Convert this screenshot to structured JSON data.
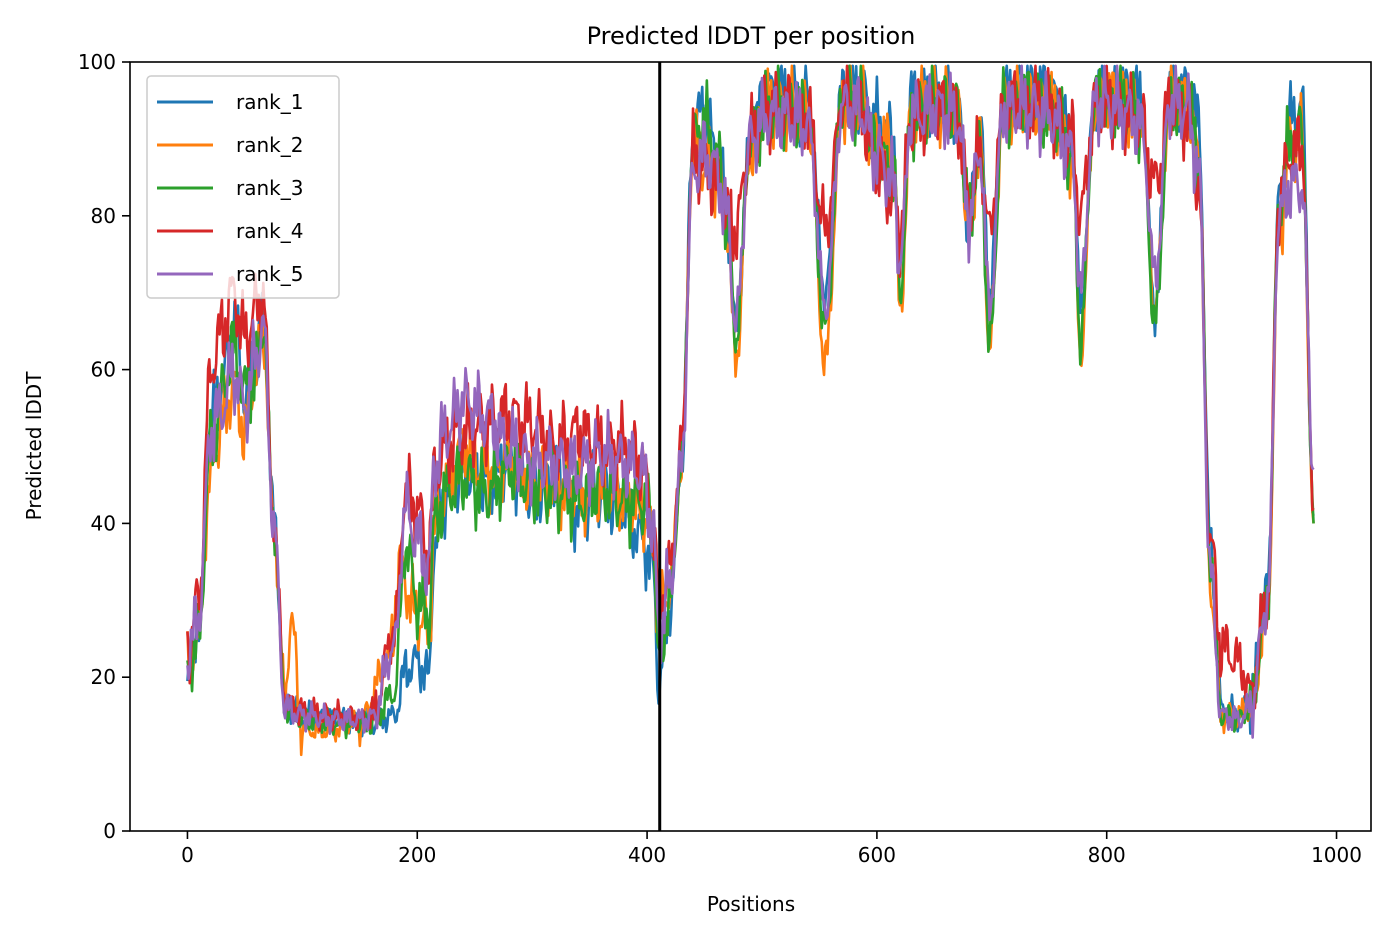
{
  "chart_data": {
    "type": "line",
    "title": "Predicted lDDT per position",
    "xlabel": "Positions",
    "ylabel": "Predicted lDDT",
    "xlim": [
      -50,
      1030
    ],
    "ylim": [
      0,
      100
    ],
    "xticks": [
      0,
      200,
      400,
      600,
      800,
      1000
    ],
    "yticks": [
      0,
      20,
      40,
      60,
      80,
      100
    ],
    "grid": false,
    "legend_position": "top-left",
    "vertical_line": {
      "x": 411,
      "color": "#000000"
    },
    "series": [
      {
        "name": "rank_1",
        "color": "#1f77b4",
        "x": [
          0,
          10,
          20,
          30,
          40,
          50,
          60,
          66,
          75,
          85,
          100,
          130,
          160,
          180,
          190,
          200,
          210,
          215,
          225,
          240,
          260,
          280,
          300,
          320,
          340,
          360,
          380,
          395,
          405,
          410,
          420,
          430,
          440,
          450,
          460,
          470,
          477,
          490,
          505,
          520,
          540,
          555,
          570,
          585,
          600,
          615,
          620,
          630,
          650,
          670,
          680,
          690,
          698,
          710,
          730,
          750,
          770,
          777,
          790,
          810,
          830,
          842,
          855,
          870,
          880,
          890,
          900,
          915,
          925,
          940,
          950,
          960,
          970,
          980
        ],
        "y": [
          19.5,
          27,
          53,
          58,
          66,
          57,
          62,
          68,
          41,
          17,
          15,
          14.5,
          14,
          15,
          21,
          22,
          20,
          37,
          44,
          47,
          45,
          48,
          44,
          46,
          42,
          44,
          42,
          38,
          35,
          19,
          29,
          48,
          91,
          94,
          88,
          80,
          65,
          90,
          96,
          96,
          95,
          70,
          96,
          96,
          92,
          90,
          72,
          95,
          96,
          95,
          78,
          92,
          70,
          96,
          97,
          96,
          90,
          68,
          96,
          96,
          95,
          68,
          97,
          96,
          92,
          38,
          16,
          15,
          17,
          31,
          82,
          92,
          95,
          41
        ]
      },
      {
        "name": "rank_2",
        "color": "#ff7f0e",
        "x": [
          0,
          10,
          20,
          30,
          40,
          50,
          60,
          66,
          75,
          85,
          90,
          100,
          120,
          150,
          175,
          185,
          200,
          210,
          215,
          225,
          240,
          260,
          280,
          300,
          320,
          340,
          360,
          380,
          395,
          405,
          410,
          420,
          430,
          440,
          450,
          460,
          470,
          477,
          490,
          505,
          520,
          540,
          555,
          570,
          585,
          600,
          615,
          620,
          630,
          650,
          670,
          680,
          690,
          698,
          710,
          730,
          750,
          770,
          777,
          790,
          810,
          830,
          842,
          855,
          870,
          880,
          890,
          900,
          915,
          925,
          940,
          950,
          960,
          970,
          980
        ],
        "y": [
          22,
          26,
          46,
          53,
          58,
          52,
          60,
          64,
          40,
          17,
          28,
          13,
          13,
          14,
          22,
          34,
          28,
          26,
          40,
          45,
          50,
          47,
          48,
          46,
          45,
          44,
          44,
          44,
          42,
          38,
          28,
          32,
          48,
          89,
          87,
          86,
          78,
          61,
          89,
          94,
          94,
          93,
          61,
          95,
          95,
          90,
          88,
          67,
          94,
          95,
          94,
          78,
          90,
          63,
          94,
          95,
          94,
          88,
          62,
          95,
          95,
          93,
          68,
          95,
          94,
          88,
          32,
          15,
          15,
          16,
          29,
          78,
          90,
          90,
          40
        ]
      },
      {
        "name": "rank_3",
        "color": "#2ca02c",
        "x": [
          0,
          10,
          20,
          30,
          40,
          50,
          60,
          66,
          75,
          85,
          100,
          130,
          160,
          180,
          190,
          200,
          210,
          215,
          225,
          240,
          260,
          280,
          300,
          320,
          340,
          360,
          380,
          395,
          405,
          410,
          420,
          430,
          440,
          450,
          460,
          470,
          477,
          490,
          505,
          520,
          540,
          555,
          570,
          585,
          600,
          615,
          620,
          630,
          650,
          670,
          680,
          690,
          698,
          710,
          730,
          750,
          770,
          777,
          790,
          810,
          830,
          842,
          855,
          870,
          880,
          890,
          900,
          915,
          925,
          940,
          950,
          960,
          970,
          980
        ],
        "y": [
          21,
          25,
          50,
          57,
          63,
          57,
          60,
          66,
          40,
          16,
          14.5,
          14,
          14,
          18,
          37,
          30,
          28,
          40,
          44,
          46,
          44,
          47,
          45,
          44,
          43,
          45,
          43,
          43,
          40,
          22,
          30,
          48,
          90,
          92,
          88,
          80,
          64,
          90,
          94,
          94,
          93,
          65,
          96,
          95,
          88,
          86,
          70,
          93,
          95,
          94,
          80,
          89,
          63,
          94,
          95,
          94,
          88,
          64,
          95,
          95,
          93,
          66,
          95,
          94,
          88,
          36,
          15,
          14.5,
          16,
          30,
          82,
          90,
          91,
          40
        ]
      },
      {
        "name": "rank_4",
        "color": "#d62728",
        "x": [
          0,
          10,
          20,
          30,
          40,
          50,
          60,
          66,
          75,
          85,
          100,
          130,
          160,
          180,
          190,
          200,
          210,
          215,
          225,
          240,
          260,
          280,
          300,
          320,
          340,
          360,
          380,
          395,
          405,
          410,
          420,
          430,
          440,
          450,
          460,
          470,
          477,
          490,
          505,
          520,
          540,
          555,
          570,
          585,
          600,
          615,
          620,
          630,
          650,
          670,
          680,
          690,
          698,
          710,
          730,
          750,
          770,
          777,
          790,
          810,
          830,
          842,
          855,
          870,
          880,
          890,
          900,
          915,
          925,
          940,
          950,
          960,
          970,
          980
        ],
        "y": [
          24,
          30,
          60,
          65,
          70,
          64,
          68,
          70,
          40,
          17,
          15.5,
          15,
          14.5,
          26,
          44,
          42,
          36,
          46,
          50,
          52,
          53,
          54,
          53,
          50,
          52,
          50,
          50,
          48,
          40,
          30,
          34,
          50,
          88,
          86,
          84,
          80,
          78,
          90,
          94,
          94,
          93,
          78,
          95,
          94,
          86,
          82,
          78,
          92,
          94,
          93,
          82,
          88,
          78,
          94,
          95,
          94,
          90,
          80,
          94,
          94,
          92,
          84,
          94,
          93,
          84,
          38,
          24,
          22,
          18,
          30,
          82,
          88,
          89,
          42
        ]
      },
      {
        "name": "rank_5",
        "color": "#9467bd",
        "x": [
          0,
          10,
          20,
          30,
          40,
          50,
          60,
          66,
          75,
          85,
          100,
          130,
          160,
          180,
          190,
          200,
          210,
          215,
          225,
          240,
          260,
          280,
          300,
          320,
          340,
          360,
          380,
          395,
          405,
          410,
          420,
          430,
          440,
          450,
          460,
          470,
          477,
          490,
          505,
          520,
          540,
          555,
          570,
          585,
          600,
          615,
          620,
          630,
          650,
          670,
          680,
          690,
          698,
          710,
          730,
          750,
          770,
          777,
          790,
          810,
          830,
          842,
          855,
          870,
          880,
          890,
          900,
          915,
          925,
          940,
          950,
          960,
          970,
          980
        ],
        "y": [
          23,
          28,
          52,
          55,
          60,
          55,
          62,
          66,
          40,
          16,
          15,
          14.5,
          14.5,
          24,
          42,
          38,
          34,
          48,
          52,
          56,
          54,
          50,
          48,
          48,
          47,
          49,
          48,
          47,
          40,
          26,
          32,
          48,
          86,
          88,
          86,
          80,
          66,
          90,
          93,
          93,
          92,
          68,
          94,
          94,
          88,
          84,
          74,
          93,
          94,
          93,
          80,
          88,
          68,
          94,
          94,
          93,
          88,
          70,
          95,
          94,
          92,
          72,
          95,
          94,
          86,
          34,
          15,
          14.5,
          16,
          30,
          80,
          84,
          84,
          47
        ]
      }
    ]
  }
}
